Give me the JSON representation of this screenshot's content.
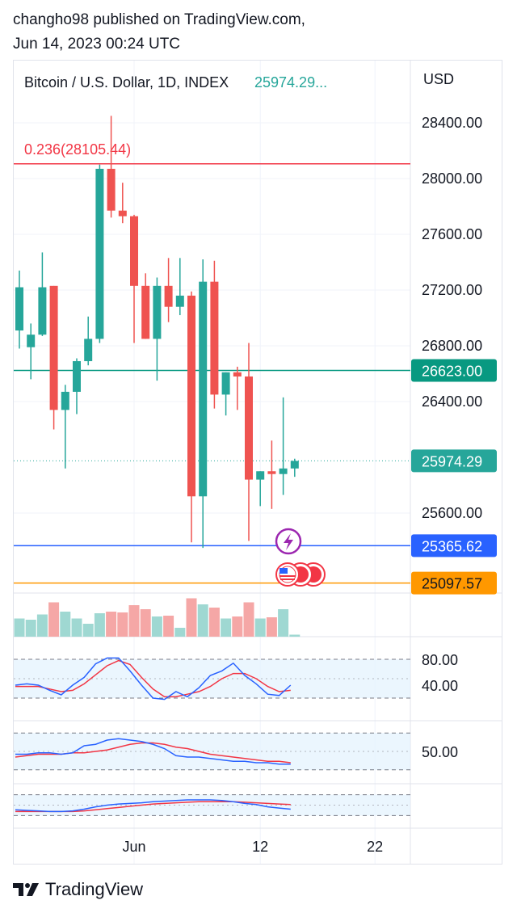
{
  "header": {
    "line1": "changho98 published on TradingView.com,",
    "line2": "Jun 14, 2023 00:24 UTC"
  },
  "brand": {
    "name": "TradingView"
  },
  "colors": {
    "up": "#26a69a",
    "down": "#ef5350",
    "fib": "#f23645",
    "level_green": "#089981",
    "level_blue": "#2962ff",
    "level_orange": "#ff9800",
    "grid": "#f0f3fa",
    "osc_bg": "#e3f2fd",
    "osc_blue": "#2962ff",
    "osc_red": "#f23645"
  },
  "chart_data": {
    "type": "candlestick",
    "title": "Bitcoin / U.S. Dollar, 1D, INDEX",
    "last_value_label": "25974.29...",
    "currency": "USD",
    "y_ticks": [
      "28400.00",
      "28000.00",
      "27600.00",
      "27200.00",
      "26800.00",
      "26400.00",
      "25600.00"
    ],
    "ylim": [
      25150,
      28800
    ],
    "x_ticks": [
      {
        "label": "Jun",
        "index": 10
      },
      {
        "label": "12",
        "index": 21
      },
      {
        "label": "22",
        "index": 31
      }
    ],
    "fib": {
      "label": "0.236(28105.44)",
      "price": 28105.44
    },
    "price_levels": [
      {
        "label": "26623.00",
        "price": 26623.0,
        "color": "#089981",
        "style": "solid"
      },
      {
        "label": "25974.29",
        "price": 25974.29,
        "color": "#26a69a",
        "style": "dotted"
      },
      {
        "label": "25365.62",
        "price": 25365.62,
        "color": "#2962ff",
        "style": "solid"
      },
      {
        "label": "25097.57",
        "price": 25097.57,
        "color": "#ff9800",
        "style": "solid"
      }
    ],
    "candles": [
      {
        "o": 26910,
        "h": 27340,
        "l": 26780,
        "c": 27220,
        "v": 0.45
      },
      {
        "o": 26790,
        "h": 26960,
        "l": 26560,
        "c": 26880,
        "v": 0.42
      },
      {
        "o": 26880,
        "h": 27470,
        "l": 26870,
        "c": 27220,
        "v": 0.55
      },
      {
        "o": 27230,
        "h": 27230,
        "l": 26200,
        "c": 26340,
        "v": 0.85
      },
      {
        "o": 26340,
        "h": 26520,
        "l": 25920,
        "c": 26470,
        "v": 0.62
      },
      {
        "o": 26470,
        "h": 26710,
        "l": 26310,
        "c": 26690,
        "v": 0.45
      },
      {
        "o": 26690,
        "h": 27010,
        "l": 26660,
        "c": 26850,
        "v": 0.32
      },
      {
        "o": 26850,
        "h": 28100,
        "l": 26820,
        "c": 28070,
        "v": 0.58
      },
      {
        "o": 28070,
        "h": 28450,
        "l": 27720,
        "c": 27770,
        "v": 0.62
      },
      {
        "o": 27770,
        "h": 27970,
        "l": 27680,
        "c": 27730,
        "v": 0.6
      },
      {
        "o": 27730,
        "h": 27740,
        "l": 26820,
        "c": 27230,
        "v": 0.78
      },
      {
        "o": 27230,
        "h": 27320,
        "l": 26850,
        "c": 26850,
        "v": 0.68
      },
      {
        "o": 26850,
        "h": 27290,
        "l": 26550,
        "c": 27230,
        "v": 0.5
      },
      {
        "o": 27230,
        "h": 27430,
        "l": 26970,
        "c": 27080,
        "v": 0.52
      },
      {
        "o": 27080,
        "h": 27430,
        "l": 27020,
        "c": 27160,
        "v": 0.22
      },
      {
        "o": 27160,
        "h": 27190,
        "l": 25390,
        "c": 25720,
        "v": 0.95
      },
      {
        "o": 25720,
        "h": 27420,
        "l": 25350,
        "c": 27260,
        "v": 0.8
      },
      {
        "o": 27260,
        "h": 27410,
        "l": 26350,
        "c": 26450,
        "v": 0.72
      },
      {
        "o": 26450,
        "h": 26610,
        "l": 26300,
        "c": 26610,
        "v": 0.45
      },
      {
        "o": 26610,
        "h": 26650,
        "l": 26340,
        "c": 26580,
        "v": 0.5
      },
      {
        "o": 26580,
        "h": 26820,
        "l": 25400,
        "c": 25840,
        "v": 0.85
      },
      {
        "o": 25840,
        "h": 25900,
        "l": 25650,
        "c": 25900,
        "v": 0.45
      },
      {
        "o": 25900,
        "h": 26120,
        "l": 25630,
        "c": 25880,
        "v": 0.48
      },
      {
        "o": 25880,
        "h": 26430,
        "l": 25730,
        "c": 25920,
        "v": 0.68
      },
      {
        "o": 25920,
        "h": 25990,
        "l": 25860,
        "c": 25974,
        "v": 0.05
      }
    ],
    "oscillators": [
      {
        "name": "stoch",
        "tick_label": "80.00",
        "tick_label2": "40.00",
        "ylim": [
          0,
          100
        ],
        "bands": [
          80,
          20
        ],
        "mid": 50,
        "blue": [
          40,
          42,
          40,
          32,
          25,
          40,
          52,
          73,
          82,
          82,
          62,
          40,
          20,
          18,
          30,
          22,
          36,
          55,
          62,
          74,
          55,
          42,
          26,
          24,
          40
        ],
        "red": [
          38,
          38,
          38,
          34,
          30,
          32,
          42,
          56,
          70,
          78,
          72,
          52,
          34,
          22,
          22,
          26,
          30,
          38,
          50,
          58,
          58,
          50,
          38,
          30,
          32
        ]
      },
      {
        "name": "rsi",
        "tick_label": "50.00",
        "ylim": [
          30,
          70
        ],
        "bands": [
          63,
          37
        ],
        "mid": 50,
        "blue": [
          48,
          48,
          49,
          49,
          48,
          49,
          54,
          55,
          58,
          59,
          58,
          57,
          55,
          52,
          47,
          46,
          46,
          45,
          44,
          43,
          43,
          42,
          42,
          41,
          41
        ],
        "red": [
          46,
          47,
          48,
          48,
          48,
          49,
          49,
          50,
          51,
          53,
          55,
          56,
          56,
          55,
          53,
          52,
          50,
          48,
          47,
          46,
          45,
          44,
          43,
          43,
          42
        ]
      },
      {
        "name": "macd",
        "ylim": [
          -3,
          3
        ],
        "bands": [
          1.8,
          -1.8
        ],
        "mid": 0,
        "blue": [
          -0.8,
          -0.9,
          -1.0,
          -1.1,
          -1.1,
          -1.0,
          -0.7,
          -0.3,
          0.0,
          0.2,
          0.3,
          0.4,
          0.6,
          0.7,
          0.8,
          0.9,
          0.9,
          0.9,
          0.8,
          0.6,
          0.3,
          0.1,
          -0.3,
          -0.5,
          -0.7
        ],
        "red": [
          -1.1,
          -1.1,
          -1.1,
          -1.1,
          -1.1,
          -1.1,
          -1.0,
          -0.8,
          -0.6,
          -0.4,
          -0.2,
          0.0,
          0.2,
          0.3,
          0.4,
          0.5,
          0.6,
          0.6,
          0.6,
          0.6,
          0.5,
          0.4,
          0.3,
          0.2,
          0.1
        ]
      }
    ]
  }
}
